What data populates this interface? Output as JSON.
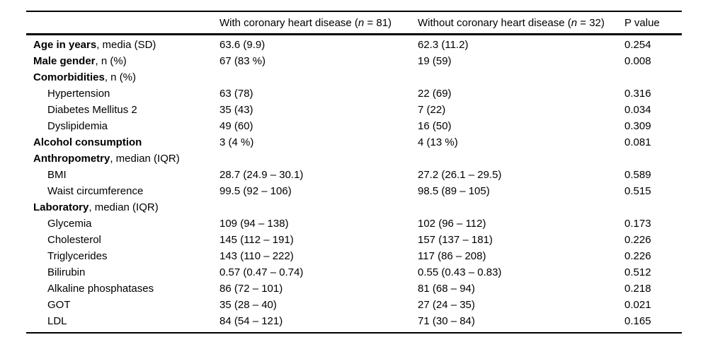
{
  "page": {
    "background_color": "#ffffff",
    "text_color": "#000000",
    "rule_color": "#000000"
  },
  "table": {
    "header": {
      "blank": "",
      "with_chd": {
        "text": "With coronary heart disease (",
        "n": "n",
        "count": " = 81)"
      },
      "without_chd": {
        "text": "Without coronary heart disease (",
        "n": "n",
        "count": " = 32)"
      },
      "p_value": "P value"
    },
    "rows": [
      {
        "bold": "Age in years",
        "rest": ", media (SD)",
        "with_chd": "63.6 (9.9)",
        "without_chd": "62.3 (11.2)",
        "p": "0.254"
      },
      {
        "bold": "Male gender",
        "rest": ", n (%)",
        "with_chd": "67 (83 %)",
        "without_chd": "19 (59)",
        "p": "0.008"
      },
      {
        "bold": "Comorbidities",
        "rest": ", n (%)",
        "with_chd": "",
        "without_chd": "",
        "p": ""
      },
      {
        "bold": "",
        "rest": "Hypertension",
        "with_chd": "63 (78)",
        "without_chd": "22 (69)",
        "p": "0.316"
      },
      {
        "bold": "",
        "rest": "Diabetes Mellitus 2",
        "with_chd": "35 (43)",
        "without_chd": "7 (22)",
        "p": "0.034"
      },
      {
        "bold": "",
        "rest": "Dyslipidemia",
        "with_chd": "49 (60)",
        "without_chd": "16 (50)",
        "p": "0.309"
      },
      {
        "bold": "Alcohol consumption",
        "rest": "",
        "with_chd": "3 (4 %)",
        "without_chd": "4 (13 %)",
        "p": "0.081"
      },
      {
        "bold": "Anthropometry",
        "rest": ", median (IQR)",
        "with_chd": "",
        "without_chd": "",
        "p": ""
      },
      {
        "bold": "",
        "rest": "BMI",
        "with_chd": "28.7 (24.9 – 30.1)",
        "without_chd": "27.2 (26.1 – 29.5)",
        "p": "0.589"
      },
      {
        "bold": "",
        "rest": "Waist circumference",
        "with_chd": "99.5 (92 – 106)",
        "without_chd": "98.5 (89 – 105)",
        "p": "0.515"
      },
      {
        "bold": "Laboratory",
        "rest": ", median (IQR)",
        "with_chd": "",
        "without_chd": "",
        "p": ""
      },
      {
        "bold": "",
        "rest": "Glycemia",
        "with_chd": "109 (94 – 138)",
        "without_chd": "102 (96 – 112)",
        "p": "0.173"
      },
      {
        "bold": "",
        "rest": "Cholesterol",
        "with_chd": "145 (112 – 191)",
        "without_chd": "157 (137 – 181)",
        "p": "0.226"
      },
      {
        "bold": "",
        "rest": "Triglycerides",
        "with_chd": "143 (110 – 222)",
        "without_chd": "117 (86 – 208)",
        "p": "0.226"
      },
      {
        "bold": "",
        "rest": "Bilirubin",
        "with_chd": "0.57 (0.47 – 0.74)",
        "without_chd": "0.55 (0.43 – 0.83)",
        "p": "0.512"
      },
      {
        "bold": "",
        "rest": "Alkaline phosphatases",
        "with_chd": "86 (72 – 101)",
        "without_chd": "81 (68 – 94)",
        "p": "0.218"
      },
      {
        "bold": "",
        "rest": "GOT",
        "with_chd": "35 (28 – 40)",
        "without_chd": "27 (24 – 35)",
        "p": "0.021"
      },
      {
        "bold": "",
        "rest": "LDL",
        "with_chd": "84 (54 – 121)",
        "without_chd": "71 (30 – 84)",
        "p": "0.165"
      }
    ]
  }
}
